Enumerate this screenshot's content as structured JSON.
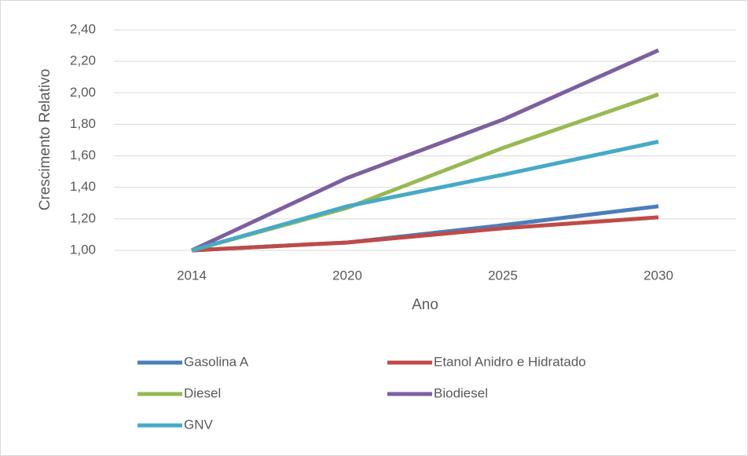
{
  "chart_data": {
    "type": "line",
    "y_label": "Crescimento Relativo",
    "x_label": "Ano",
    "categories": [
      "2014",
      "2020",
      "2025",
      "2030"
    ],
    "series": [
      {
        "name": "Gasolina A",
        "color": "#4a7ebb",
        "values": [
          1.0,
          1.05,
          1.16,
          1.28
        ]
      },
      {
        "name": "Etanol Anidro e Hidratado",
        "color": "#be4b48",
        "values": [
          1.0,
          1.05,
          1.14,
          1.21
        ]
      },
      {
        "name": "Diesel",
        "color": "#98b954",
        "values": [
          1.0,
          1.27,
          1.65,
          1.99
        ]
      },
      {
        "name": "Biodiesel",
        "color": "#7d5fa0",
        "values": [
          1.0,
          1.46,
          1.83,
          2.27
        ]
      },
      {
        "name": "GNV",
        "color": "#46aac5",
        "values": [
          1.0,
          1.28,
          1.48,
          1.69
        ]
      }
    ],
    "ylim": [
      1.0,
      2.4
    ],
    "yticks": [
      {
        "value": 1.0,
        "label": "1,00"
      },
      {
        "value": 1.2,
        "label": "1,20"
      },
      {
        "value": 1.4,
        "label": "1,40"
      },
      {
        "value": 1.6,
        "label": "1,60"
      },
      {
        "value": 1.8,
        "label": "1,80"
      },
      {
        "value": 2.0,
        "label": "2,00"
      },
      {
        "value": 2.2,
        "label": "2,20"
      },
      {
        "value": 2.4,
        "label": "2,40"
      }
    ],
    "grid": true
  }
}
